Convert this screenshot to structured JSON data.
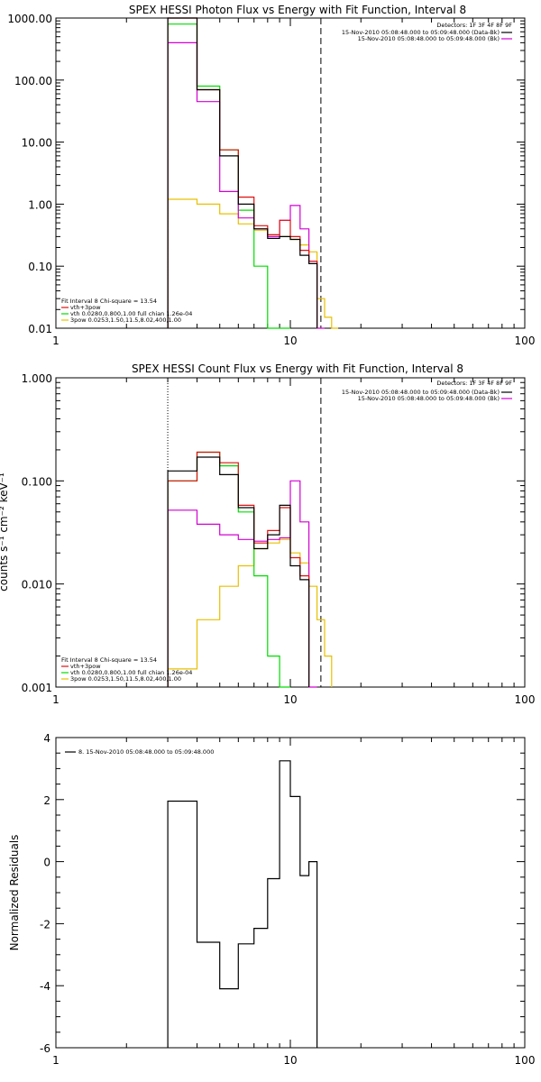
{
  "colors": {
    "total": "#000000",
    "fit": "#e01010",
    "vth": "#00dd00",
    "pow": "#e8c000",
    "data": "#d400d4"
  },
  "chart_data": [
    {
      "type": "line",
      "title": "SPEX HESSI Photon Flux vs Energy with Fit Function, Interval 8",
      "xscale": "log",
      "yscale": "log",
      "xlim": [
        1,
        100
      ],
      "ylim": [
        0.01,
        1000
      ],
      "xticks": [
        "1",
        "10",
        "100"
      ],
      "yticks": [
        "0.01",
        "0.10",
        "1.00",
        "10.00",
        "100.00",
        "1000.00"
      ],
      "dotted_vline_x": 3,
      "dashed_vline_x": 13.5,
      "detectors": "Detectors: 1F 3F 4F 8F 9F",
      "legend_top": [
        {
          "text": "15-Nov-2010 05:08:48.000 to 05:09:48.000 (Data-Bk)",
          "color": "total"
        },
        {
          "text": "15-Nov-2010 05:08:48.000 to 05:09:48.000 (Bk)",
          "color": "data"
        }
      ],
      "legend_fit": [
        {
          "text": "Fit Interval 8   Chi-square = 13.54",
          "color": ""
        },
        {
          "text": "vth+3pow",
          "color": "fit"
        },
        {
          "text": "vth 0.0280,0.800,1.00  full chian 1.26e-04",
          "color": "vth"
        },
        {
          "text": "3pow 0.0253,1.50,11.5,8.02,400,1.00",
          "color": "pow"
        }
      ],
      "edges": [
        3,
        4,
        5,
        6,
        7,
        8,
        9,
        10,
        11,
        12,
        13,
        14,
        15,
        16
      ],
      "series": [
        {
          "color": "total",
          "values": [
            1000,
            70,
            6,
            1.0,
            0.4,
            0.28,
            0.3,
            0.27,
            0.15,
            0.11
          ]
        },
        {
          "color": "fit",
          "values": [
            1000,
            70,
            7.5,
            1.3,
            0.45,
            0.32,
            0.55,
            0.3,
            0.18,
            0.12
          ]
        },
        {
          "color": "vth",
          "values": [
            800,
            80,
            7.5,
            0.8,
            0.1,
            0.01,
            0.005
          ]
        },
        {
          "color": "pow",
          "values": [
            1.2,
            1.0,
            0.7,
            0.48,
            0.38,
            0.32,
            0.3,
            0.27,
            0.22,
            0.17,
            0.03,
            0.015,
            0.006
          ]
        },
        {
          "color": "data",
          "values": [
            400,
            45,
            1.6,
            0.6,
            0.4,
            0.3,
            0.55,
            0.95,
            0.4,
            0.12,
            0.005
          ]
        }
      ]
    },
    {
      "type": "line",
      "title": "SPEX HESSI Count Flux vs Energy with Fit Function, Interval 8",
      "ylabel": "counts s⁻¹ cm⁻² keV⁻¹",
      "xscale": "log",
      "yscale": "log",
      "xlim": [
        1,
        100
      ],
      "ylim": [
        0.001,
        1
      ],
      "xticks": [
        "1",
        "10",
        "100"
      ],
      "yticks": [
        "0.001",
        "0.010",
        "0.100",
        "1.000"
      ],
      "dotted_vline_x": 3,
      "dashed_vline_x": 13.5,
      "detectors": "Detectors: 1F 3F 4F 8F 9F",
      "legend_top": [
        {
          "text": "15-Nov-2010 05:08:48.000 to 05:09:48.000 (Data-Bk)",
          "color": "total"
        },
        {
          "text": "15-Nov-2010 05:08:48.000 to 05:09:48.000 (Bk)",
          "color": "data"
        }
      ],
      "legend_fit": [
        {
          "text": "Fit Interval 8   Chi-square = 13.54",
          "color": ""
        },
        {
          "text": "vth+3pow",
          "color": "fit"
        },
        {
          "text": "vth 0.0280,0.800,1.00  full chian 1.26e-04",
          "color": "vth"
        },
        {
          "text": "3pow 0.0253,1.50,11.5,8.02,400,1.00",
          "color": "pow"
        }
      ],
      "edges": [
        3,
        4,
        5,
        6,
        7,
        8,
        9,
        10,
        11,
        12,
        13,
        14,
        15,
        16
      ],
      "series": [
        {
          "color": "total",
          "values": [
            0.125,
            0.17,
            0.115,
            0.055,
            0.022,
            0.03,
            0.058,
            0.015,
            0.011
          ]
        },
        {
          "color": "fit",
          "values": [
            0.1,
            0.19,
            0.15,
            0.058,
            0.025,
            0.033,
            0.055,
            0.018,
            0.012
          ]
        },
        {
          "color": "vth",
          "values": [
            0.1,
            0.19,
            0.14,
            0.05,
            0.012,
            0.002,
            0.0005
          ]
        },
        {
          "color": "pow",
          "values": [
            0.0015,
            0.0045,
            0.0095,
            0.015,
            0.022,
            0.025,
            0.027,
            0.02,
            0.016,
            0.0095,
            0.0045,
            0.002
          ]
        },
        {
          "color": "data",
          "values": [
            0.052,
            0.038,
            0.03,
            0.027,
            0.026,
            0.027,
            0.028,
            0.1,
            0.04,
            0.0008
          ]
        }
      ]
    },
    {
      "type": "line",
      "ylabel": "Normalized Residuals",
      "xscale": "log",
      "yscale": "linear",
      "xlim": [
        1,
        100
      ],
      "ylim": [
        -6,
        4
      ],
      "xticks": [
        "1",
        "10",
        "100"
      ],
      "yticks": [
        "-6",
        "-4",
        "-2",
        "0",
        "2",
        "4"
      ],
      "legend_top": [
        {
          "text": "8. 15-Nov-2010 05:08:48.000 to 05:09:48.000",
          "color": "total"
        }
      ],
      "edges": [
        3,
        4,
        5,
        6,
        7,
        8,
        9,
        10,
        11,
        12,
        13
      ],
      "series": [
        {
          "color": "total",
          "values": [
            1.95,
            -2.6,
            -4.1,
            -2.65,
            -2.15,
            -0.55,
            3.25,
            2.1,
            -0.45,
            0.0
          ]
        }
      ]
    }
  ]
}
